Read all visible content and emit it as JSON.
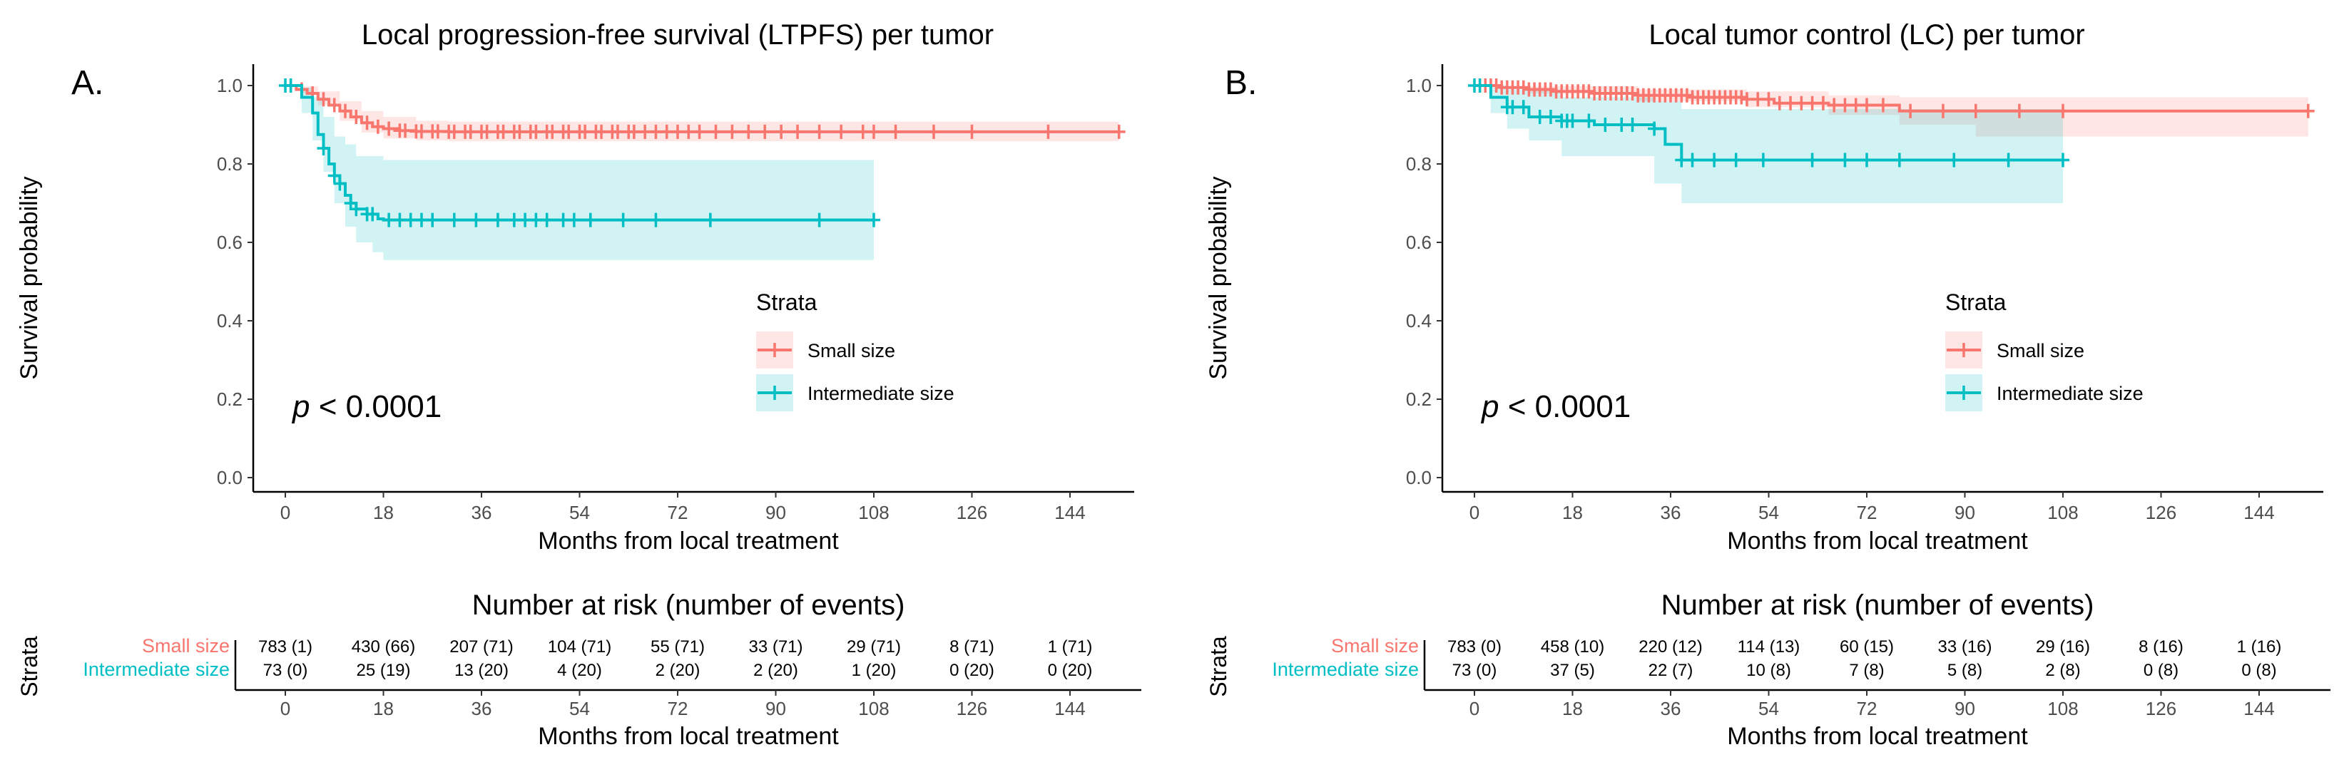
{
  "colors": {
    "small": "#f8766d",
    "intermediate": "#00bfc4"
  },
  "chart_data": [
    {
      "type": "line",
      "panel_label": "A.",
      "title": "Local progression-free survival (LTPFS) per tumor",
      "xlabel": "Months from local treatment",
      "ylabel": "Survival probability",
      "xlim": [
        -6,
        157
      ],
      "ylim": [
        -0.02,
        1.06
      ],
      "xticks": [
        0,
        18,
        36,
        54,
        72,
        90,
        108,
        126,
        144
      ],
      "yticks": [
        0.0,
        0.2,
        0.4,
        0.6,
        0.8,
        1.0
      ],
      "ytick_labels": [
        "0.0",
        "0.2",
        "0.4",
        "0.6",
        "0.8",
        "1.0"
      ],
      "pvalue_symbol": "p",
      "pvalue_text": " < 0.0001",
      "legend_title": "Strata",
      "legend_position": "right-middle",
      "series": [
        {
          "name": "Small size",
          "color_key": "small",
          "steps": [
            [
              0,
              1.0
            ],
            [
              2,
              0.99
            ],
            [
              4,
              0.98
            ],
            [
              6,
              0.965
            ],
            [
              8,
              0.95
            ],
            [
              10,
              0.935
            ],
            [
              12,
              0.92
            ],
            [
              14,
              0.905
            ],
            [
              16,
              0.895
            ],
            [
              18,
              0.89
            ],
            [
              21,
              0.885
            ],
            [
              24,
              0.883
            ],
            [
              30,
              0.882
            ],
            [
              153,
              0.882
            ]
          ],
          "ci_upper": [
            [
              0,
              1.0
            ],
            [
              3,
              0.998
            ],
            [
              6,
              0.985
            ],
            [
              10,
              0.96
            ],
            [
              14,
              0.935
            ],
            [
              18,
              0.92
            ],
            [
              24,
              0.91
            ],
            [
              30,
              0.908
            ],
            [
              153,
              0.908
            ]
          ],
          "ci_lower": [
            [
              0,
              1.0
            ],
            [
              3,
              0.98
            ],
            [
              6,
              0.95
            ],
            [
              10,
              0.91
            ],
            [
              14,
              0.88
            ],
            [
              18,
              0.865
            ],
            [
              24,
              0.86
            ],
            [
              30,
              0.858
            ],
            [
              153,
              0.858
            ]
          ],
          "censor": [
            1,
            3,
            5,
            7,
            9,
            11,
            13,
            15,
            17,
            19,
            21,
            22,
            24,
            25,
            27,
            28,
            30,
            31,
            33,
            34,
            36,
            37,
            39,
            40,
            42,
            43,
            45,
            46,
            48,
            49,
            51,
            52,
            54,
            55,
            57,
            58,
            60,
            61,
            63,
            64,
            66,
            68,
            70,
            72,
            74,
            76,
            79,
            82,
            85,
            88,
            91,
            94,
            98,
            102,
            106,
            108,
            112,
            119,
            126,
            140,
            153
          ]
        },
        {
          "name": "Intermediate size",
          "color_key": "intermediate",
          "steps": [
            [
              0,
              1.0
            ],
            [
              3,
              0.97
            ],
            [
              5,
              0.93
            ],
            [
              6,
              0.875
            ],
            [
              7,
              0.84
            ],
            [
              8,
              0.8
            ],
            [
              9,
              0.77
            ],
            [
              10,
              0.75
            ],
            [
              11,
              0.72
            ],
            [
              12,
              0.7
            ],
            [
              13,
              0.685
            ],
            [
              15,
              0.672
            ],
            [
              17,
              0.66
            ],
            [
              18,
              0.657
            ],
            [
              108,
              0.657
            ]
          ],
          "ci_upper": [
            [
              0,
              1.0
            ],
            [
              3,
              0.995
            ],
            [
              5,
              0.97
            ],
            [
              7,
              0.92
            ],
            [
              9,
              0.87
            ],
            [
              11,
              0.85
            ],
            [
              13,
              0.82
            ],
            [
              18,
              0.81
            ],
            [
              108,
              0.81
            ]
          ],
          "ci_lower": [
            [
              0,
              1.0
            ],
            [
              3,
              0.93
            ],
            [
              5,
              0.86
            ],
            [
              7,
              0.78
            ],
            [
              9,
              0.7
            ],
            [
              11,
              0.64
            ],
            [
              13,
              0.6
            ],
            [
              16,
              0.575
            ],
            [
              18,
              0.555
            ],
            [
              108,
              0.555
            ]
          ],
          "censor": [
            0,
            1,
            7,
            9,
            10,
            12,
            13,
            15,
            16,
            19,
            21,
            23,
            25,
            27,
            31,
            35,
            39,
            42,
            44,
            46,
            48,
            51,
            53,
            56,
            62,
            68,
            78,
            98,
            108
          ]
        }
      ],
      "risk_table": {
        "title": "Number at risk (number of events)",
        "xlabel": "Months from local treatment",
        "ylabel": "Strata",
        "rows": [
          {
            "label": "Small size",
            "color_key": "small",
            "values": [
              "783 (1)",
              "430 (66)",
              "207 (71)",
              "104 (71)",
              "55 (71)",
              "33 (71)",
              "29 (71)",
              "8 (71)",
              "1 (71)"
            ]
          },
          {
            "label": "Intermediate size",
            "color_key": "intermediate",
            "values": [
              "73 (0)",
              "25 (19)",
              "13 (20)",
              "4 (20)",
              "2 (20)",
              "2 (20)",
              "1 (20)",
              "0 (20)",
              "0 (20)"
            ]
          }
        ]
      }
    },
    {
      "type": "line",
      "panel_label": "B.",
      "title": "Local tumor control (LC) per tumor",
      "xlabel": "Months from local treatment",
      "ylabel": "Survival probability",
      "xlim": [
        -6,
        157
      ],
      "ylim": [
        -0.02,
        1.06
      ],
      "xticks": [
        0,
        18,
        36,
        54,
        72,
        90,
        108,
        126,
        144
      ],
      "yticks": [
        0.0,
        0.2,
        0.4,
        0.6,
        0.8,
        1.0
      ],
      "ytick_labels": [
        "0.0",
        "0.2",
        "0.4",
        "0.6",
        "0.8",
        "1.0"
      ],
      "pvalue_symbol": "p",
      "pvalue_text": " < 0.0001",
      "legend_title": "Strata",
      "legend_position": "right-middle",
      "series": [
        {
          "name": "Small size",
          "color_key": "small",
          "steps": [
            [
              0,
              1.0
            ],
            [
              5,
              0.995
            ],
            [
              10,
              0.99
            ],
            [
              15,
              0.985
            ],
            [
              22,
              0.98
            ],
            [
              30,
              0.975
            ],
            [
              40,
              0.97
            ],
            [
              50,
              0.965
            ],
            [
              55,
              0.955
            ],
            [
              65,
              0.95
            ],
            [
              78,
              0.935
            ],
            [
              153,
              0.935
            ]
          ],
          "ci_upper": [
            [
              0,
              1.0
            ],
            [
              10,
              0.998
            ],
            [
              30,
              0.99
            ],
            [
              50,
              0.985
            ],
            [
              65,
              0.975
            ],
            [
              78,
              0.97
            ],
            [
              153,
              0.97
            ]
          ],
          "ci_lower": [
            [
              0,
              1.0
            ],
            [
              10,
              0.98
            ],
            [
              30,
              0.96
            ],
            [
              50,
              0.945
            ],
            [
              65,
              0.925
            ],
            [
              78,
              0.9
            ],
            [
              92,
              0.87
            ],
            [
              153,
              0.87
            ]
          ],
          "censor": [
            1,
            2,
            3,
            4,
            5,
            6,
            7,
            8,
            9,
            10,
            11,
            12,
            13,
            14,
            15,
            16,
            17,
            18,
            19,
            20,
            21,
            22,
            23,
            24,
            25,
            26,
            27,
            28,
            29,
            30,
            31,
            32,
            33,
            34,
            35,
            36,
            37,
            38,
            39,
            40,
            41,
            42,
            43,
            44,
            45,
            46,
            47,
            48,
            49,
            50,
            52,
            54,
            56,
            58,
            60,
            62,
            64,
            66,
            68,
            70,
            72,
            75,
            80,
            86,
            92,
            100,
            108,
            153
          ]
        },
        {
          "name": "Intermediate size",
          "color_key": "intermediate",
          "steps": [
            [
              0,
              1.0
            ],
            [
              3,
              0.97
            ],
            [
              6,
              0.945
            ],
            [
              10,
              0.92
            ],
            [
              16,
              0.91
            ],
            [
              22,
              0.9
            ],
            [
              33,
              0.89
            ],
            [
              35,
              0.85
            ],
            [
              38,
              0.81
            ],
            [
              108,
              0.81
            ]
          ],
          "ci_upper": [
            [
              0,
              1.0
            ],
            [
              6,
              0.99
            ],
            [
              16,
              0.97
            ],
            [
              33,
              0.96
            ],
            [
              38,
              0.94
            ],
            [
              108,
              0.94
            ]
          ],
          "ci_lower": [
            [
              0,
              1.0
            ],
            [
              3,
              0.93
            ],
            [
              6,
              0.89
            ],
            [
              10,
              0.86
            ],
            [
              16,
              0.82
            ],
            [
              33,
              0.75
            ],
            [
              38,
              0.7
            ],
            [
              108,
              0.7
            ]
          ],
          "censor": [
            0,
            1,
            6,
            7,
            9,
            12,
            14,
            16,
            17,
            18,
            21,
            24,
            27,
            29,
            33,
            38,
            40,
            44,
            48,
            53,
            62,
            68,
            72,
            78,
            88,
            98,
            108
          ]
        }
      ],
      "risk_table": {
        "title": "Number at risk (number of events)",
        "xlabel": "Months from local treatment",
        "ylabel": "Strata",
        "rows": [
          {
            "label": "Small size",
            "color_key": "small",
            "values": [
              "783 (0)",
              "458 (10)",
              "220 (12)",
              "114 (13)",
              "60 (15)",
              "33 (16)",
              "29 (16)",
              "8 (16)",
              "1 (16)"
            ]
          },
          {
            "label": "Intermediate size",
            "color_key": "intermediate",
            "values": [
              "73 (0)",
              "37 (5)",
              "22 (7)",
              "10 (8)",
              "7 (8)",
              "5 (8)",
              "2 (8)",
              "0 (8)",
              "0 (8)"
            ]
          }
        ]
      }
    }
  ]
}
